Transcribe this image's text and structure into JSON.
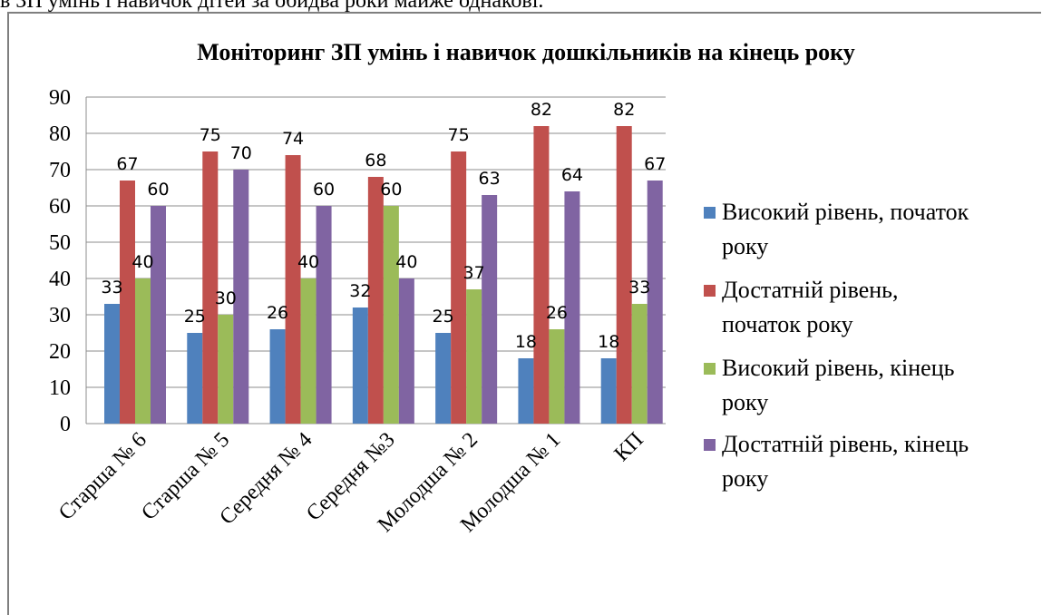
{
  "page": {
    "top_text": "в ЗП умінь і навичок дітей за обидва роки майже однакові."
  },
  "chart_data": {
    "type": "bar",
    "title": "Моніторинг ЗП умінь і навичок дошкільників на кінець року",
    "xlabel": "",
    "ylabel": "",
    "ylim": [
      0,
      90
    ],
    "yticks": [
      "0",
      "10",
      "20",
      "30",
      "40",
      "50",
      "60",
      "70",
      "80",
      "90"
    ],
    "grid": true,
    "legend_position": "right",
    "categories": [
      "Старша № 6",
      "Старша № 5",
      "Середня № 4",
      "Середня №3",
      "Молодша № 2",
      "Молодша № 1",
      "КП"
    ],
    "series": [
      {
        "name": "Високий рівень, початок року",
        "legend_lines": [
          "Високий рівень, початок",
          "року"
        ],
        "color": "#4F81BD",
        "values": [
          33,
          25,
          26,
          32,
          25,
          18,
          18
        ]
      },
      {
        "name": "Достатній рівень, початок року",
        "legend_lines": [
          "Достатній рівень,",
          "початок року"
        ],
        "color": "#C0504D",
        "values": [
          67,
          75,
          74,
          68,
          75,
          82,
          82
        ]
      },
      {
        "name": "Високий рівень, кінець року",
        "legend_lines": [
          "Високий рівень, кінець",
          "року"
        ],
        "color": "#9BBB59",
        "values": [
          40,
          30,
          40,
          60,
          37,
          26,
          33
        ]
      },
      {
        "name": "Достатній рівень, кінець року",
        "legend_lines": [
          "Достатній рівень, кінець",
          "року"
        ],
        "color": "#8064A2",
        "values": [
          60,
          70,
          60,
          40,
          63,
          64,
          67
        ]
      }
    ]
  }
}
